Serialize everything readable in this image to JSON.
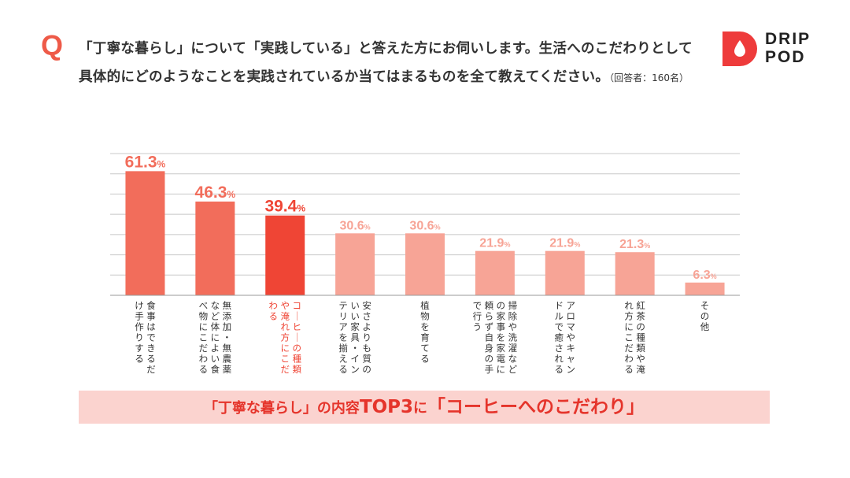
{
  "question": {
    "mark": "Q",
    "text": "「丁寧な暮らし」について「実践している」と答えた方にお伺いします。生活へのこだわりとして具体的にどのようなことを実践されているか当てはまるものを全て教えてください。",
    "note": "（回答者：160名）"
  },
  "logo": {
    "line1": "DRIP",
    "line2": "POD"
  },
  "colors": {
    "accent": "#ee5a48",
    "bar_top": "#f26d5b",
    "bar_highlight": "#ef4535",
    "bar_other": "#f7a496",
    "banner_bg": "#fbd3cf",
    "banner_text": "#e5342b",
    "logo_red": "#ee3b3b"
  },
  "banner": {
    "part1": "「丁寧な暮らし」の内容",
    "part2": "TOP3",
    "part3": "に",
    "part4": "「コーヒーへのこだわり」"
  },
  "chart_data": {
    "type": "bar",
    "unit": "%",
    "ylim": [
      0,
      70
    ],
    "grid": true,
    "highlight_index": 2,
    "categories": [
      "食事はできるだけ手作りする",
      "無添加・無農薬など体によい食べ物にこだわる",
      "コーヒーの種類や淹れ方にこだわる",
      "安さよりも質のいい家具・インテリアを揃える",
      "植物を育てる",
      "掃除や洗濯などの家事を家電に頼らず自身の手で行う",
      "アロマやキャンドルで癒される",
      "紅茶の種類や淹れ方にこだわる",
      "その他"
    ],
    "values": [
      61.3,
      46.3,
      39.4,
      30.6,
      30.6,
      21.9,
      21.9,
      21.3,
      6.3
    ]
  }
}
